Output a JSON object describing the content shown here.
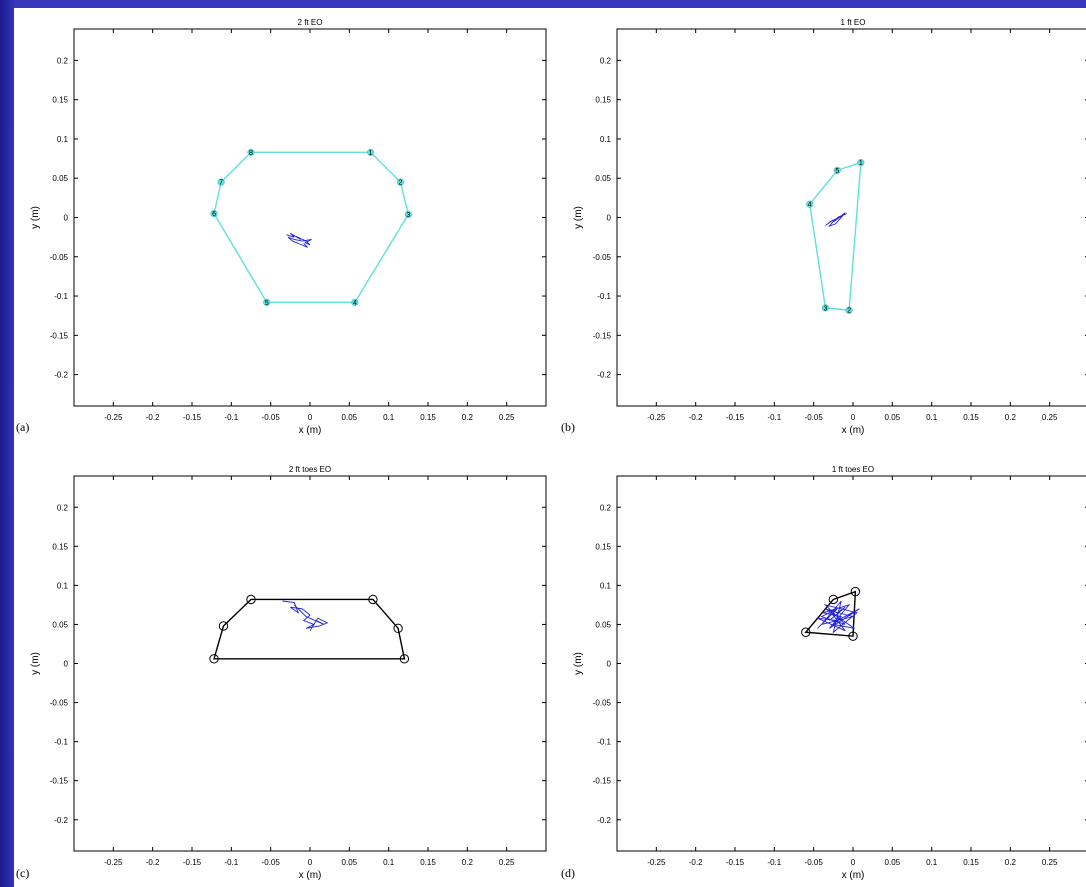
{
  "chart_data": [
    {
      "type": "scatter",
      "panel_label": "(a)",
      "title": "2 ft EO",
      "xlabel": "x (m)",
      "ylabel": "y (m)",
      "xlim": [
        -0.3,
        0.3
      ],
      "ylim": [
        -0.24,
        0.24
      ],
      "xticks": [
        "-0.25",
        "-0.2",
        "-0.15",
        "-0.1",
        "-0.05",
        "0",
        "0.05",
        "0.1",
        "0.15",
        "0.2",
        "0.25"
      ],
      "yticks": [
        "0.2",
        "0.15",
        "0.1",
        "0.05",
        "0",
        "-0.05",
        "-0.1",
        "-0.15",
        "-0.2"
      ],
      "polygon_color": "#5fe0e0",
      "marker_style": "filled",
      "vertices": [
        {
          "label": "1",
          "x": 0.077,
          "y": 0.083
        },
        {
          "label": "2",
          "x": 0.115,
          "y": 0.045
        },
        {
          "label": "3",
          "x": 0.125,
          "y": 0.004
        },
        {
          "label": "4",
          "x": 0.057,
          "y": -0.108
        },
        {
          "label": "5",
          "x": -0.055,
          "y": -0.108
        },
        {
          "label": "6",
          "x": -0.122,
          "y": 0.005
        },
        {
          "label": "7",
          "x": -0.113,
          "y": 0.045
        },
        {
          "label": "8",
          "x": -0.075,
          "y": 0.083
        }
      ],
      "sway_color": "#1f1fe0",
      "sway": [
        [
          -0.03,
          -0.022
        ],
        [
          -0.02,
          -0.025
        ],
        [
          -0.025,
          -0.02
        ],
        [
          -0.012,
          -0.028
        ],
        [
          -0.018,
          -0.024
        ],
        [
          -0.005,
          -0.03
        ],
        [
          0.0,
          -0.035
        ],
        [
          -0.006,
          -0.032
        ],
        [
          0.002,
          -0.028
        ],
        [
          -0.01,
          -0.03
        ],
        [
          -0.02,
          -0.028
        ],
        [
          -0.028,
          -0.025
        ],
        [
          -0.022,
          -0.03
        ],
        [
          -0.01,
          -0.035
        ],
        [
          -0.003,
          -0.038
        ],
        [
          -0.008,
          -0.033
        ]
      ]
    },
    {
      "type": "scatter",
      "panel_label": "(b)",
      "title": "1 ft EO",
      "xlabel": "x (m)",
      "ylabel": "y (m)",
      "xlim": [
        -0.3,
        0.3
      ],
      "ylim": [
        -0.24,
        0.24
      ],
      "xticks": [
        "-0.25",
        "-0.2",
        "-0.15",
        "-0.1",
        "-0.05",
        "0",
        "0.05",
        "0.1",
        "0.15",
        "0.2",
        "0.25"
      ],
      "yticks": [
        "0.2",
        "0.15",
        "0.1",
        "0.05",
        "0",
        "-0.05",
        "-0.1",
        "-0.15",
        "-0.2"
      ],
      "polygon_color": "#5fe0e0",
      "marker_style": "filled",
      "vertices": [
        {
          "label": "1",
          "x": 0.01,
          "y": 0.07
        },
        {
          "label": "2",
          "x": -0.005,
          "y": -0.118
        },
        {
          "label": "3",
          "x": -0.035,
          "y": -0.115
        },
        {
          "label": "4",
          "x": -0.055,
          "y": 0.017
        },
        {
          "label": "5",
          "x": -0.02,
          "y": 0.06
        }
      ],
      "sway_color": "#1f1fe0",
      "sway": [
        [
          -0.035,
          -0.01
        ],
        [
          -0.025,
          -0.003
        ],
        [
          -0.03,
          -0.006
        ],
        [
          -0.018,
          0.0
        ],
        [
          -0.024,
          -0.005
        ],
        [
          -0.012,
          0.004
        ],
        [
          -0.02,
          -0.002
        ],
        [
          -0.01,
          0.006
        ],
        [
          -0.016,
          -0.001
        ],
        [
          -0.022,
          -0.008
        ],
        [
          -0.03,
          -0.011
        ],
        [
          -0.026,
          -0.006
        ],
        [
          -0.015,
          0.002
        ],
        [
          -0.008,
          0.005
        ],
        [
          -0.02,
          0.0
        ]
      ]
    },
    {
      "type": "scatter",
      "panel_label": "(c)",
      "title": "2 ft toes EO",
      "xlabel": "x (m)",
      "ylabel": "y (m)",
      "xlim": [
        -0.3,
        0.3
      ],
      "ylim": [
        -0.24,
        0.24
      ],
      "xticks": [
        "-0.25",
        "-0.2",
        "-0.15",
        "-0.1",
        "-0.05",
        "0",
        "0.05",
        "0.1",
        "0.15",
        "0.2",
        "0.25"
      ],
      "yticks": [
        "0.2",
        "0.15",
        "0.1",
        "0.05",
        "0",
        "-0.05",
        "-0.1",
        "-0.15",
        "-0.2"
      ],
      "polygon_color": "#000000",
      "marker_style": "open",
      "vertices": [
        {
          "label": "",
          "x": -0.075,
          "y": 0.082
        },
        {
          "label": "",
          "x": 0.08,
          "y": 0.082
        },
        {
          "label": "",
          "x": 0.112,
          "y": 0.045
        },
        {
          "label": "",
          "x": 0.12,
          "y": 0.006
        },
        {
          "label": "",
          "x": -0.122,
          "y": 0.006
        },
        {
          "label": "",
          "x": -0.11,
          "y": 0.048
        }
      ],
      "sway_color": "#1f1fe0",
      "sway": [
        [
          -0.035,
          0.08
        ],
        [
          -0.02,
          0.078
        ],
        [
          -0.015,
          0.065
        ],
        [
          -0.025,
          0.072
        ],
        [
          -0.01,
          0.07
        ],
        [
          0.0,
          0.062
        ],
        [
          -0.008,
          0.055
        ],
        [
          0.005,
          0.05
        ],
        [
          -0.005,
          0.045
        ],
        [
          0.012,
          0.048
        ],
        [
          0.022,
          0.052
        ],
        [
          0.01,
          0.058
        ],
        [
          0.0,
          0.042
        ],
        [
          0.008,
          0.055
        ],
        [
          0.018,
          0.05
        ],
        [
          -0.005,
          0.06
        ],
        [
          -0.02,
          0.075
        ]
      ]
    },
    {
      "type": "scatter",
      "panel_label": "(d)",
      "title": "1 ft toes EO",
      "xlabel": "x (m)",
      "ylabel": "y (m)",
      "xlim": [
        -0.3,
        0.3
      ],
      "ylim": [
        -0.24,
        0.24
      ],
      "xticks": [
        "-0.25",
        "-0.2",
        "-0.15",
        "-0.1",
        "-0.05",
        "0",
        "0.05",
        "0.1",
        "0.15",
        "0.2",
        "0.25"
      ],
      "yticks": [
        "0.2",
        "0.15",
        "0.1",
        "0.05",
        "0",
        "-0.05",
        "-0.1",
        "-0.15",
        "-0.2"
      ],
      "polygon_color": "#000000",
      "marker_style": "open",
      "vertices": [
        {
          "label": "",
          "x": -0.06,
          "y": 0.04
        },
        {
          "label": "",
          "x": -0.025,
          "y": 0.082
        },
        {
          "label": "",
          "x": 0.003,
          "y": 0.092
        },
        {
          "label": "",
          "x": 0.0,
          "y": 0.035
        }
      ],
      "sway_color": "#1f1fe0",
      "sway": [
        [
          -0.045,
          0.045
        ],
        [
          -0.02,
          0.07
        ],
        [
          -0.04,
          0.06
        ],
        [
          -0.01,
          0.05
        ],
        [
          -0.035,
          0.075
        ],
        [
          0.005,
          0.065
        ],
        [
          -0.025,
          0.04
        ],
        [
          -0.015,
          0.08
        ],
        [
          -0.04,
          0.05
        ],
        [
          0.0,
          0.06
        ],
        [
          -0.03,
          0.068
        ],
        [
          -0.01,
          0.042
        ],
        [
          -0.045,
          0.058
        ],
        [
          -0.02,
          0.055
        ],
        [
          0.008,
          0.07
        ],
        [
          -0.03,
          0.045
        ],
        [
          -0.005,
          0.075
        ],
        [
          -0.038,
          0.065
        ],
        [
          -0.015,
          0.06
        ],
        [
          -0.025,
          0.05
        ],
        [
          0.002,
          0.045
        ],
        [
          -0.035,
          0.07
        ],
        [
          -0.02,
          0.065
        ],
        [
          -0.01,
          0.072
        ],
        [
          -0.03,
          0.055
        ]
      ]
    }
  ]
}
